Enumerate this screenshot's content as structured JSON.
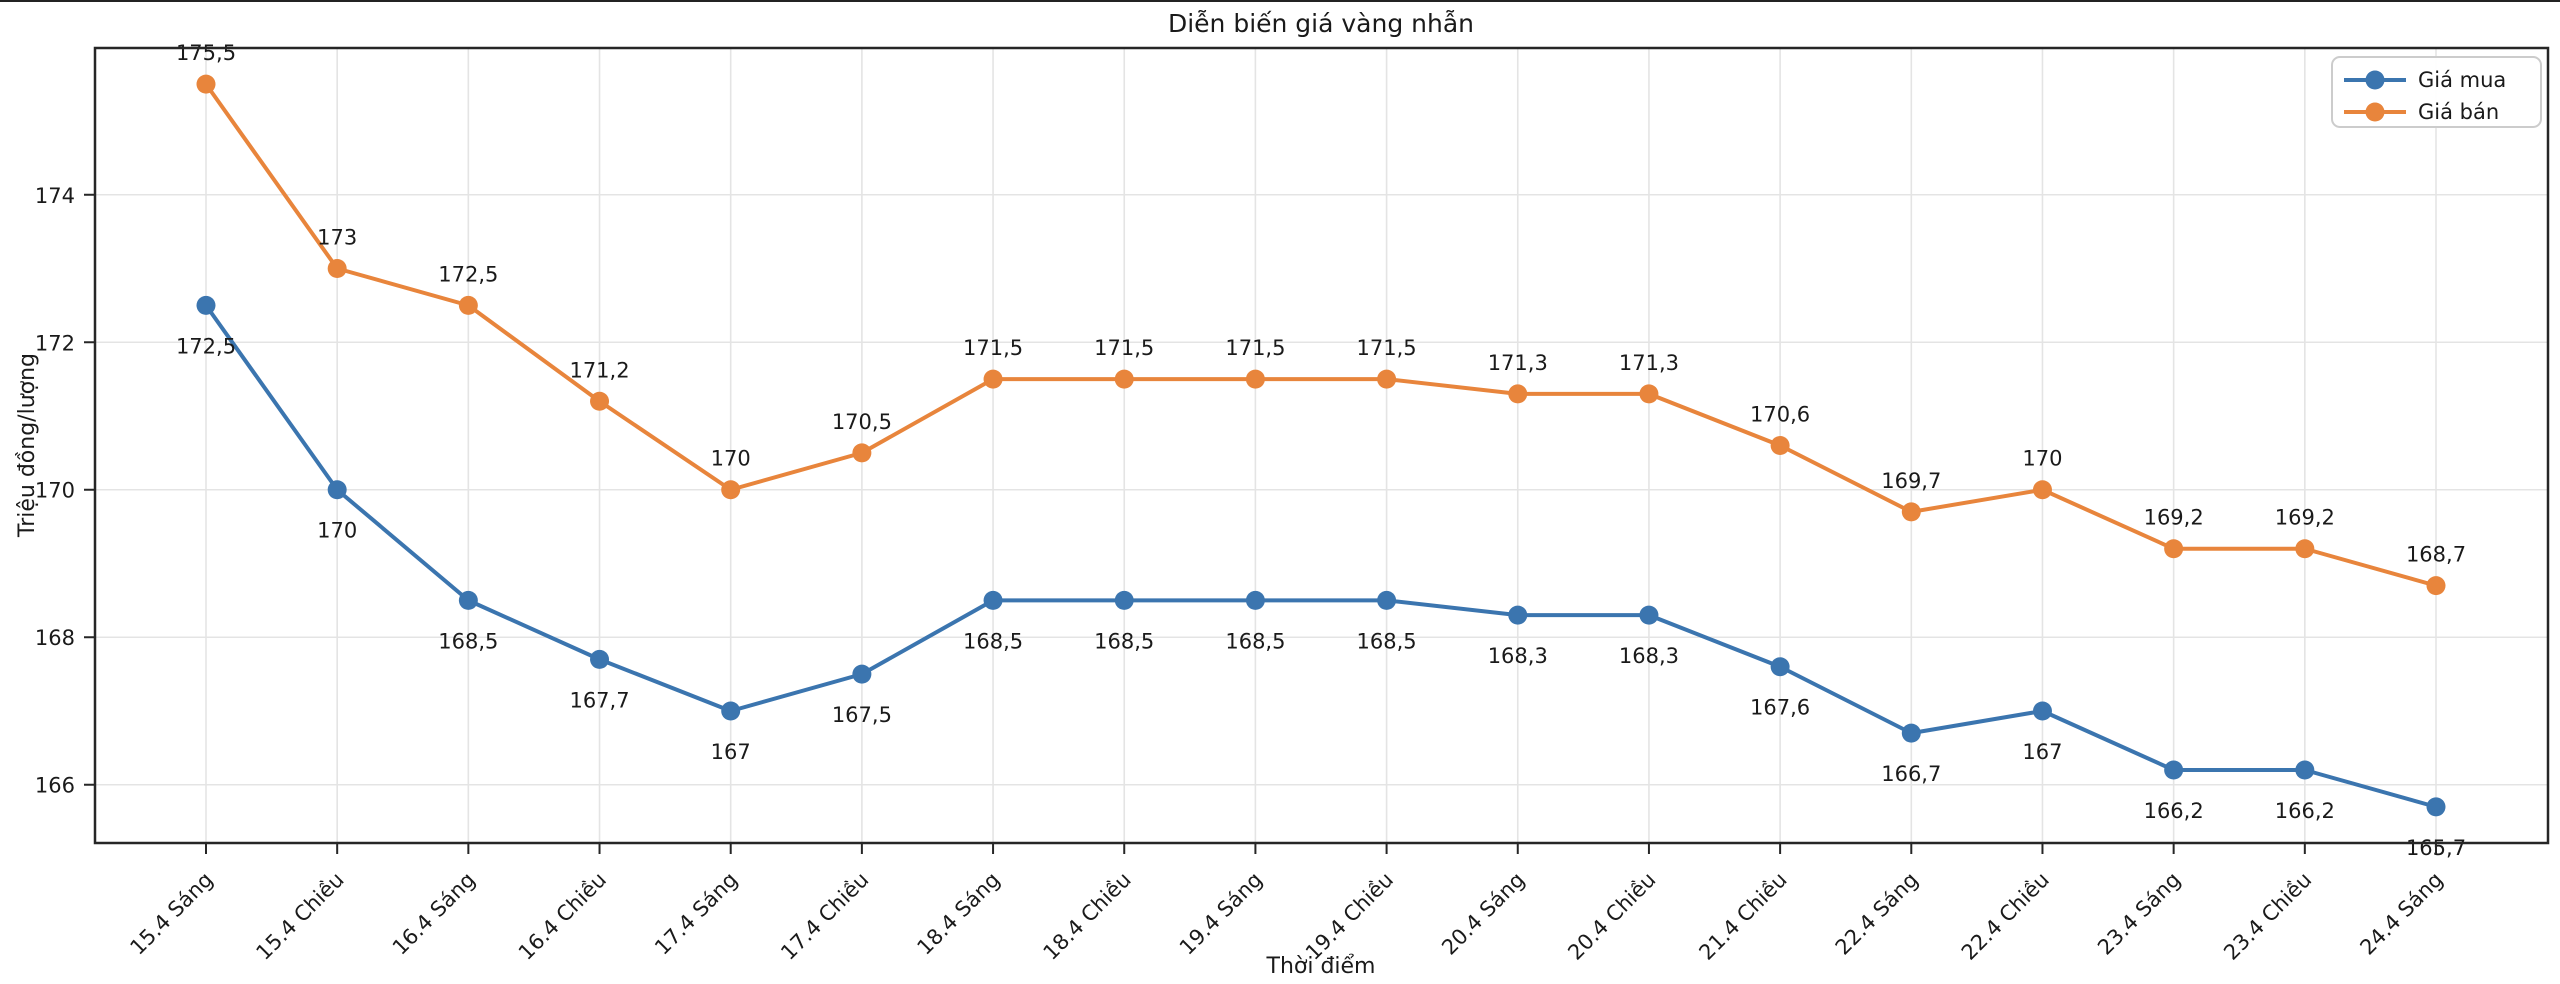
{
  "title": "Diễn biến giá vàng nhẫn",
  "axes": {
    "xlabel": "Thời điểm",
    "ylabel": "Triệu đồng/lượng"
  },
  "legend": {
    "items": [
      "Giá mua",
      "Giá bán"
    ],
    "position": "upper right"
  },
  "colors": {
    "buy_line": "#3b75af",
    "sell_line": "#e8853c",
    "grid": "#e4e4e4",
    "spine": "#262626",
    "text": "#1a1a1a",
    "legend_border": "#cccccc"
  },
  "chart_data": {
    "type": "line",
    "title": "Diễn biến giá vàng nhẫn",
    "xlabel": "Thời điểm",
    "ylabel": "Triệu đồng/lượng",
    "categories": [
      "15.4 Sáng",
      "15.4 Chiều",
      "16.4 Sáng",
      "16.4 Chiều",
      "17.4 Sáng",
      "17.4 Chiều",
      "18.4 Sáng",
      "18.4 Chiều",
      "19.4 Sáng",
      "19.4 Chiều",
      "20.4 Sáng",
      "20.4 Chiều",
      "21.4 Chiều",
      "22.4 Sáng",
      "22.4 Chiều",
      "23.4 Sáng",
      "23.4 Chiều",
      "24.4 Sáng"
    ],
    "series": [
      {
        "name": "Giá mua",
        "color": "#3b75af",
        "label_side": "below",
        "values": [
          172.5,
          170,
          168.5,
          167.7,
          167,
          167.5,
          168.5,
          168.5,
          168.5,
          168.5,
          168.3,
          168.3,
          167.6,
          166.7,
          167,
          166.2,
          166.2,
          165.7
        ],
        "labels": [
          "172,5",
          "170",
          "168,5",
          "167,7",
          "167",
          "167,5",
          "168,5",
          "168,5",
          "168,5",
          "168,5",
          "168,3",
          "168,3",
          "167,6",
          "166,7",
          "167",
          "166,2",
          "166,2",
          "165,7"
        ]
      },
      {
        "name": "Giá bán",
        "color": "#e8853c",
        "label_side": "above",
        "values": [
          175.5,
          173,
          172.5,
          171.2,
          170,
          170.5,
          171.5,
          171.5,
          171.5,
          171.5,
          171.3,
          171.3,
          170.6,
          169.7,
          170,
          169.2,
          169.2,
          168.7
        ],
        "labels": [
          "175,5",
          "173",
          "172,5",
          "171,2",
          "170",
          "170,5",
          "171,5",
          "171,5",
          "171,5",
          "171,5",
          "171,3",
          "171,3",
          "170,6",
          "169,7",
          "170",
          "169,2",
          "169,2",
          "168,7"
        ]
      }
    ],
    "yticks": [
      166,
      168,
      170,
      172,
      174
    ],
    "ytick_labels": [
      "166",
      "168",
      "170",
      "172",
      "174"
    ],
    "ylim": [
      165.21,
      175.99
    ],
    "grid": true,
    "legend_position": "upper right"
  }
}
